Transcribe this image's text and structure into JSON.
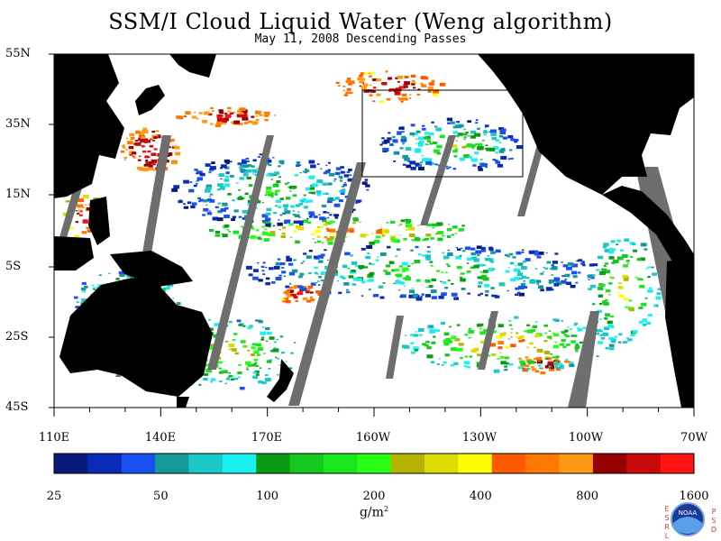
{
  "title": "SSM/I Cloud Liquid Water (Weng algorithm)",
  "subtitle": "May 11, 2008  Descending Passes",
  "latitude_labels": [
    "55N",
    "35N",
    "15N",
    "5S",
    "25S",
    "45S"
  ],
  "longitude_labels": [
    "110E",
    "140E",
    "170E",
    "160W",
    "130W",
    "100W",
    "70W"
  ],
  "colorbar": {
    "colors": [
      "#0a1a7a",
      "#0a2ab8",
      "#1a50f0",
      "#14999a",
      "#1ac8c8",
      "#1af0f0",
      "#0a9a14",
      "#14c81e",
      "#1ae61e",
      "#28ff14",
      "#b4b400",
      "#dcdc00",
      "#ffff00",
      "#ff5a00",
      "#ff7800",
      "#ff9a14",
      "#960000",
      "#c80a0a",
      "#ff1414"
    ],
    "labels": [
      "25",
      "50",
      "100",
      "200",
      "400",
      "800",
      "1600"
    ],
    "units_base": "g/m",
    "units_sup": "2"
  },
  "logo": {
    "center_text": "NOAA",
    "left_text": [
      "E",
      "S",
      "R",
      "L"
    ],
    "right_text": [
      "P",
      "S",
      "D"
    ]
  },
  "colors": {
    "land": "#000000",
    "missing_swath": "#6e6e6e",
    "ocean_clear": "#ffffff"
  }
}
